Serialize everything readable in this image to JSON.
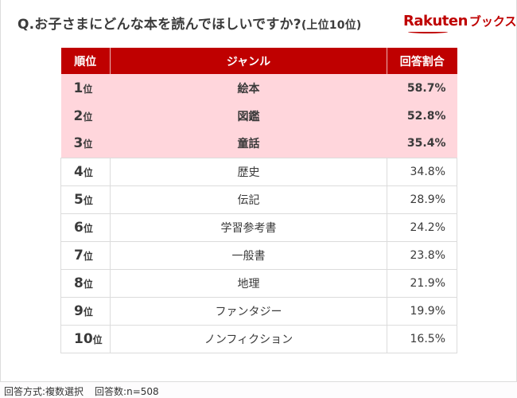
{
  "title": {
    "question": "Q.お子さまにどんな本を読んでほしいですか?",
    "subtitle": "(上位10位)"
  },
  "logo": {
    "brand": "Rakuten",
    "suffix": "ブックス",
    "color": "#bf0000"
  },
  "table": {
    "headers": [
      "順位",
      "ジャンル",
      "回答割合"
    ],
    "rank_suffix": "位",
    "rows": [
      {
        "rank": "1",
        "genre": "絵本",
        "pct": "58.7%"
      },
      {
        "rank": "2",
        "genre": "図鑑",
        "pct": "52.8%"
      },
      {
        "rank": "3",
        "genre": "童話",
        "pct": "35.4%"
      },
      {
        "rank": "4",
        "genre": "歴史",
        "pct": "34.8%"
      },
      {
        "rank": "5",
        "genre": "伝記",
        "pct": "28.9%"
      },
      {
        "rank": "6",
        "genre": "学習参考書",
        "pct": "24.2%"
      },
      {
        "rank": "7",
        "genre": "一般書",
        "pct": "23.8%"
      },
      {
        "rank": "8",
        "genre": "地理",
        "pct": "21.9%"
      },
      {
        "rank": "9",
        "genre": "ファンタジー",
        "pct": "19.9%"
      },
      {
        "rank": "10",
        "genre": "ノンフィクション",
        "pct": "16.5%"
      }
    ]
  },
  "footer": {
    "method": "回答方式:複数選択",
    "count": "回答数:n=508"
  },
  "colors": {
    "header_bg": "#bf0000",
    "highlight_bg": "#ffd6dc"
  },
  "chart_data": {
    "type": "table",
    "title": "Q.お子さまにどんな本を読んでほしいですか?(上位10位)",
    "columns": [
      "順位",
      "ジャンル",
      "回答割合"
    ],
    "categories": [
      "絵本",
      "図鑑",
      "童話",
      "歴史",
      "伝記",
      "学習参考書",
      "一般書",
      "地理",
      "ファンタジー",
      "ノンフィクション"
    ],
    "values": [
      58.7,
      52.8,
      35.4,
      34.8,
      28.9,
      24.2,
      23.8,
      21.9,
      19.9,
      16.5
    ],
    "unit": "%",
    "note": "回答方式:複数選択 回答数:n=508"
  }
}
